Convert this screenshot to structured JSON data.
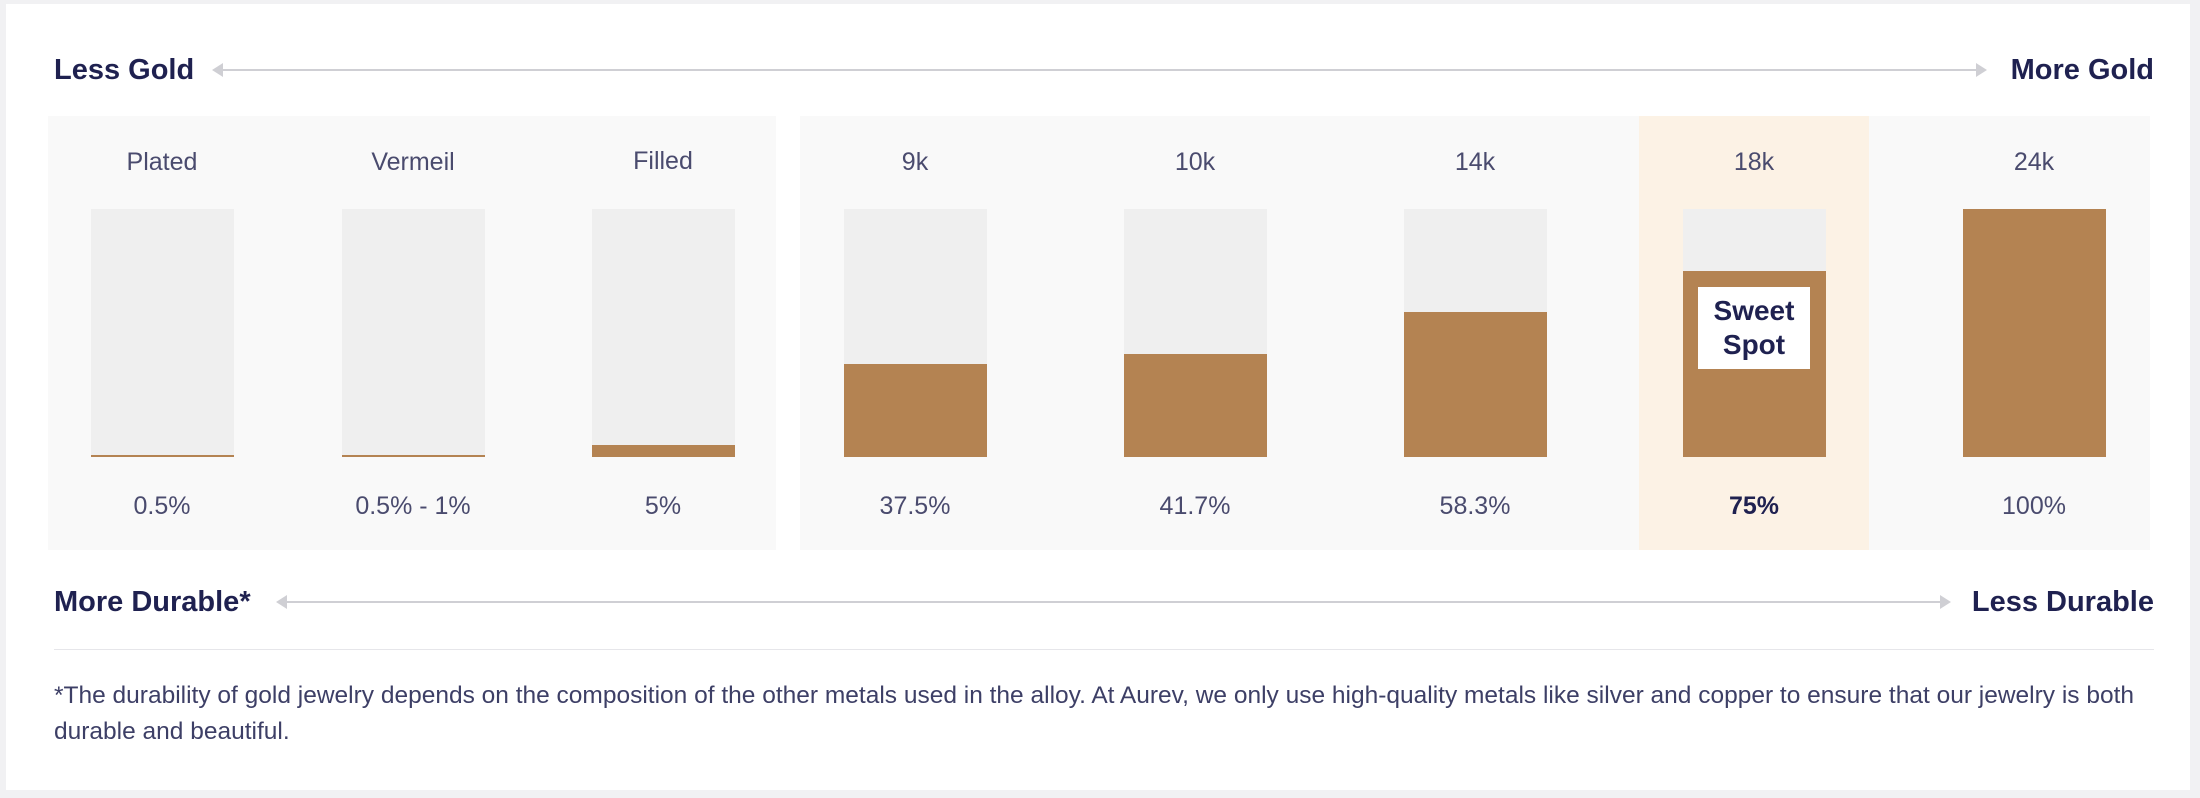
{
  "top_scale": {
    "left": "Less Gold",
    "right": "More Gold"
  },
  "bottom_scale": {
    "left": "More Durable*",
    "right": "Less Durable"
  },
  "sweet_spot_label": "Sweet Spot",
  "highlight_category": "18k",
  "colors": {
    "gold": "#b48352",
    "empty": "#efefef",
    "highlight_bg": "#fcf2e5",
    "text": "#1f2150"
  },
  "chart_data": {
    "type": "bar",
    "categories": [
      "Plated",
      "Vermeil",
      "Filled",
      "9k",
      "10k",
      "14k",
      "18k",
      "24k"
    ],
    "values": [
      0.5,
      1,
      5,
      37.5,
      41.7,
      58.3,
      75,
      100
    ],
    "value_labels": [
      "0.5%",
      "0.5% - 1%",
      "5%",
      "37.5%",
      "41.7%",
      "58.3%",
      "75%",
      "100%"
    ],
    "ylim": [
      0,
      100
    ],
    "groups": [
      [
        "Plated",
        "Vermeil",
        "Filled"
      ],
      [
        "9k",
        "10k",
        "14k",
        "18k",
        "24k"
      ]
    ],
    "annotations": [
      {
        "category": "18k",
        "text": "Sweet Spot"
      }
    ]
  },
  "footnote": "*The durability of gold jewelry depends on the composition of the other metals used in the alloy. At Aurev, we only use high-quality metals like silver and copper to ensure that our jewelry is both durable and beautiful."
}
